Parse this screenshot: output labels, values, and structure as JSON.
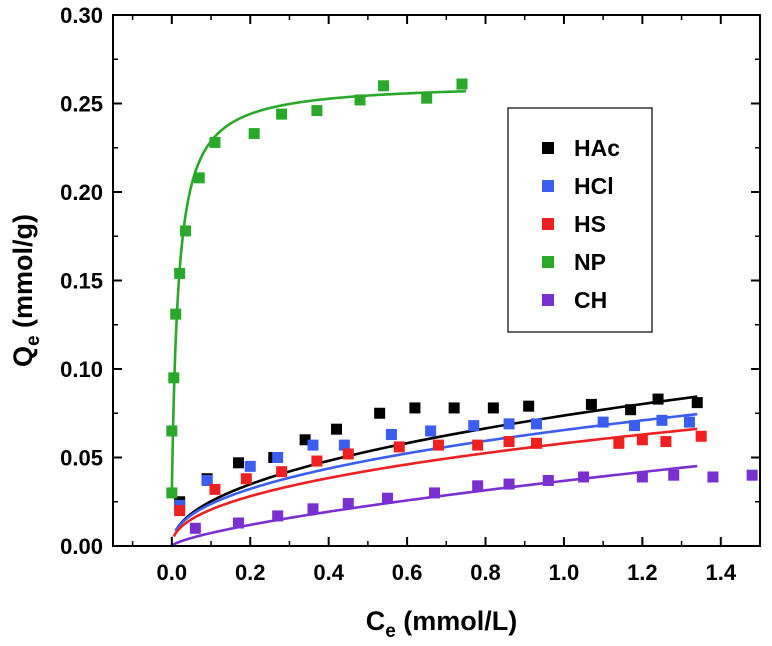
{
  "chart_data": {
    "type": "scatter",
    "xlabel": {
      "main": "C",
      "sub": "e",
      "rest": " (mmol/L)"
    },
    "ylabel": {
      "main": "Q",
      "sub": "e",
      "rest": " (mmol/g)"
    },
    "xlim": [
      -0.15,
      1.5
    ],
    "ylim": [
      0.0,
      0.3
    ],
    "xticks": [
      "0.0",
      "0.2",
      "0.4",
      "0.6",
      "0.8",
      "1.0",
      "1.2",
      "1.4"
    ],
    "xtick_values": [
      0.0,
      0.2,
      0.4,
      0.6,
      0.8,
      1.0,
      1.2,
      1.4
    ],
    "yticks": [
      "0.00",
      "0.05",
      "0.10",
      "0.15",
      "0.20",
      "0.25",
      "0.30"
    ],
    "ytick_values": [
      0.0,
      0.05,
      0.1,
      0.15,
      0.2,
      0.25,
      0.3
    ],
    "grid": false,
    "legend_position": "right",
    "series": [
      {
        "name": "HAc",
        "color": "#000000",
        "points": [
          [
            0.02,
            0.025
          ],
          [
            0.09,
            0.038
          ],
          [
            0.17,
            0.047
          ],
          [
            0.26,
            0.05
          ],
          [
            0.34,
            0.06
          ],
          [
            0.42,
            0.066
          ],
          [
            0.53,
            0.075
          ],
          [
            0.62,
            0.078
          ],
          [
            0.72,
            0.078
          ],
          [
            0.82,
            0.078
          ],
          [
            0.91,
            0.079
          ],
          [
            1.07,
            0.08
          ],
          [
            1.17,
            0.077
          ],
          [
            1.24,
            0.083
          ],
          [
            1.34,
            0.081
          ]
        ],
        "fit": {
          "model": "freundlich",
          "K": 0.0737,
          "n": 0.465,
          "x_range": [
            0.01,
            1.34
          ]
        }
      },
      {
        "name": "HCl",
        "color": "#3b5ef0",
        "points": [
          [
            0.02,
            0.023
          ],
          [
            0.09,
            0.037
          ],
          [
            0.2,
            0.045
          ],
          [
            0.27,
            0.05
          ],
          [
            0.36,
            0.057
          ],
          [
            0.44,
            0.057
          ],
          [
            0.56,
            0.063
          ],
          [
            0.66,
            0.065
          ],
          [
            0.77,
            0.068
          ],
          [
            0.86,
            0.069
          ],
          [
            0.93,
            0.069
          ],
          [
            1.1,
            0.07
          ],
          [
            1.18,
            0.068
          ],
          [
            1.25,
            0.071
          ],
          [
            1.32,
            0.07
          ]
        ],
        "fit": {
          "model": "freundlich",
          "K": 0.0655,
          "n": 0.44,
          "x_range": [
            0.01,
            1.34
          ]
        }
      },
      {
        "name": "HS",
        "color": "#ee2020",
        "points": [
          [
            0.02,
            0.02
          ],
          [
            0.11,
            0.032
          ],
          [
            0.19,
            0.038
          ],
          [
            0.28,
            0.042
          ],
          [
            0.37,
            0.048
          ],
          [
            0.45,
            0.052
          ],
          [
            0.58,
            0.056
          ],
          [
            0.68,
            0.057
          ],
          [
            0.78,
            0.057
          ],
          [
            0.86,
            0.059
          ],
          [
            0.93,
            0.058
          ],
          [
            1.14,
            0.058
          ],
          [
            1.2,
            0.06
          ],
          [
            1.26,
            0.059
          ],
          [
            1.35,
            0.062
          ]
        ],
        "fit": {
          "model": "freundlich",
          "K": 0.058,
          "n": 0.45,
          "x_range": [
            0.005,
            1.34
          ]
        }
      },
      {
        "name": "NP",
        "color": "#2aa82a",
        "points": [
          [
            0.0,
            0.03
          ],
          [
            0.0,
            0.065
          ],
          [
            0.005,
            0.095
          ],
          [
            0.01,
            0.131
          ],
          [
            0.02,
            0.154
          ],
          [
            0.035,
            0.178
          ],
          [
            0.07,
            0.208
          ],
          [
            0.11,
            0.228
          ],
          [
            0.21,
            0.233
          ],
          [
            0.28,
            0.244
          ],
          [
            0.37,
            0.246
          ],
          [
            0.48,
            0.252
          ],
          [
            0.54,
            0.26
          ],
          [
            0.65,
            0.253
          ],
          [
            0.74,
            0.261
          ]
        ],
        "fit": {
          "model": "langmuir",
          "qmax": 0.262,
          "KL": 60.0,
          "y0": 0.029,
          "x_range": [
            0.0,
            0.75
          ]
        }
      },
      {
        "name": "CH",
        "color": "#7a2fd0",
        "points": [
          [
            0.06,
            0.01
          ],
          [
            0.17,
            0.013
          ],
          [
            0.27,
            0.017
          ],
          [
            0.36,
            0.021
          ],
          [
            0.45,
            0.024
          ],
          [
            0.55,
            0.027
          ],
          [
            0.67,
            0.03
          ],
          [
            0.78,
            0.034
          ],
          [
            0.86,
            0.035
          ],
          [
            0.96,
            0.037
          ],
          [
            1.05,
            0.039
          ],
          [
            1.2,
            0.039
          ],
          [
            1.28,
            0.04
          ],
          [
            1.38,
            0.039
          ],
          [
            1.48,
            0.04
          ]
        ],
        "fit": {
          "model": "freundlich",
          "K": 0.0368,
          "n": 0.7,
          "x_range": [
            0.0,
            1.34
          ]
        }
      }
    ]
  }
}
